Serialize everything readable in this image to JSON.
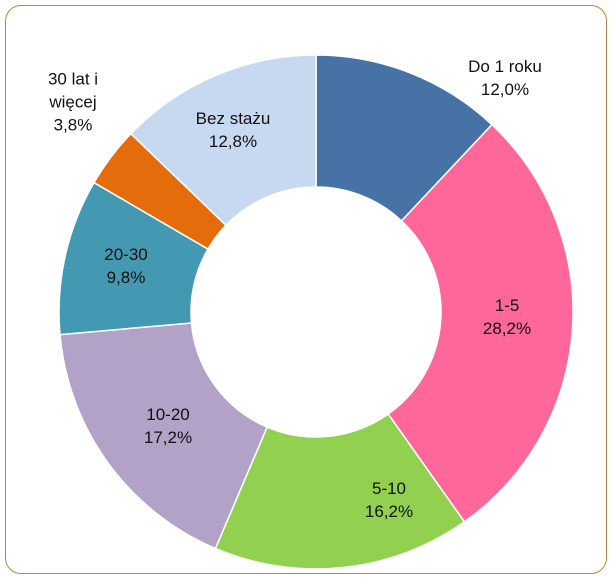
{
  "chart_data": {
    "type": "donut",
    "categories": [
      "Do 1 roku",
      "1-5",
      "5-10",
      "10-20",
      "20-30",
      "30 lat i więcej",
      "Bez stażu"
    ],
    "values": [
      12.0,
      28.2,
      16.2,
      17.2,
      9.8,
      3.8,
      12.8
    ],
    "value_labels": [
      "12,0%",
      "28,2%",
      "16,2%",
      "17,2%",
      "9,8%",
      "3,8%",
      "12,8%"
    ],
    "colors": [
      "#4672a6",
      "#ff6699",
      "#92d050",
      "#b3a2c7",
      "#4499b2",
      "#e46c0a",
      "#c6d9f1"
    ]
  }
}
